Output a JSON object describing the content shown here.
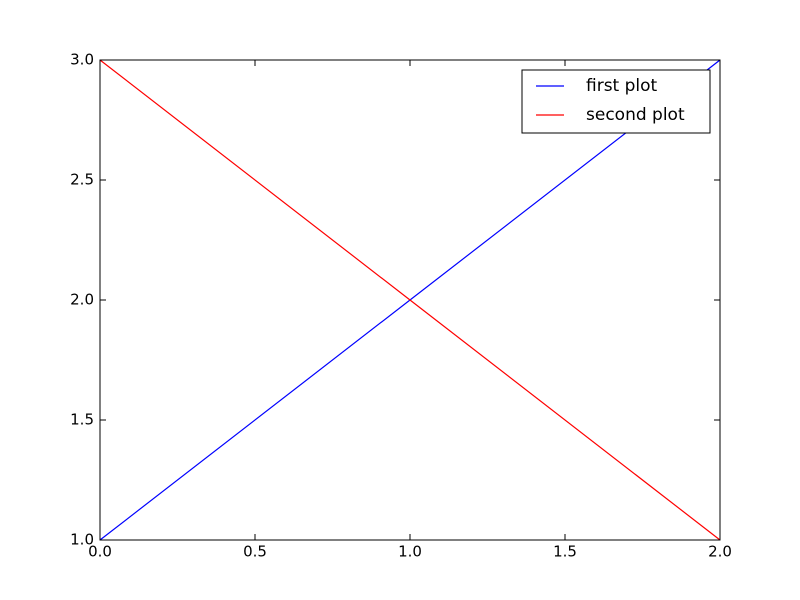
{
  "chart_data": {
    "type": "line",
    "x": [
      0,
      1,
      2
    ],
    "series": [
      {
        "name": "first plot",
        "color": "#0000ff",
        "values": [
          1,
          2,
          3
        ]
      },
      {
        "name": "second plot",
        "color": "#ff0000",
        "values": [
          3,
          2,
          1
        ]
      }
    ],
    "xlim": [
      0,
      2
    ],
    "xticks": [
      {
        "value": 0,
        "label": "0.0"
      },
      {
        "value": 0.5,
        "label": "0.5"
      },
      {
        "value": 1,
        "label": "1.0"
      },
      {
        "value": 1.5,
        "label": "1.5"
      },
      {
        "value": 2,
        "label": "2.0"
      }
    ],
    "ylim": [
      1,
      3
    ],
    "yticks": [
      {
        "value": 1,
        "label": "1.0"
      },
      {
        "value": 1.5,
        "label": "1.5"
      },
      {
        "value": 2,
        "label": "2.0"
      },
      {
        "value": 2.5,
        "label": "2.5"
      },
      {
        "value": 3,
        "label": "3.0"
      }
    ],
    "grid": false,
    "legend": "upper right"
  }
}
